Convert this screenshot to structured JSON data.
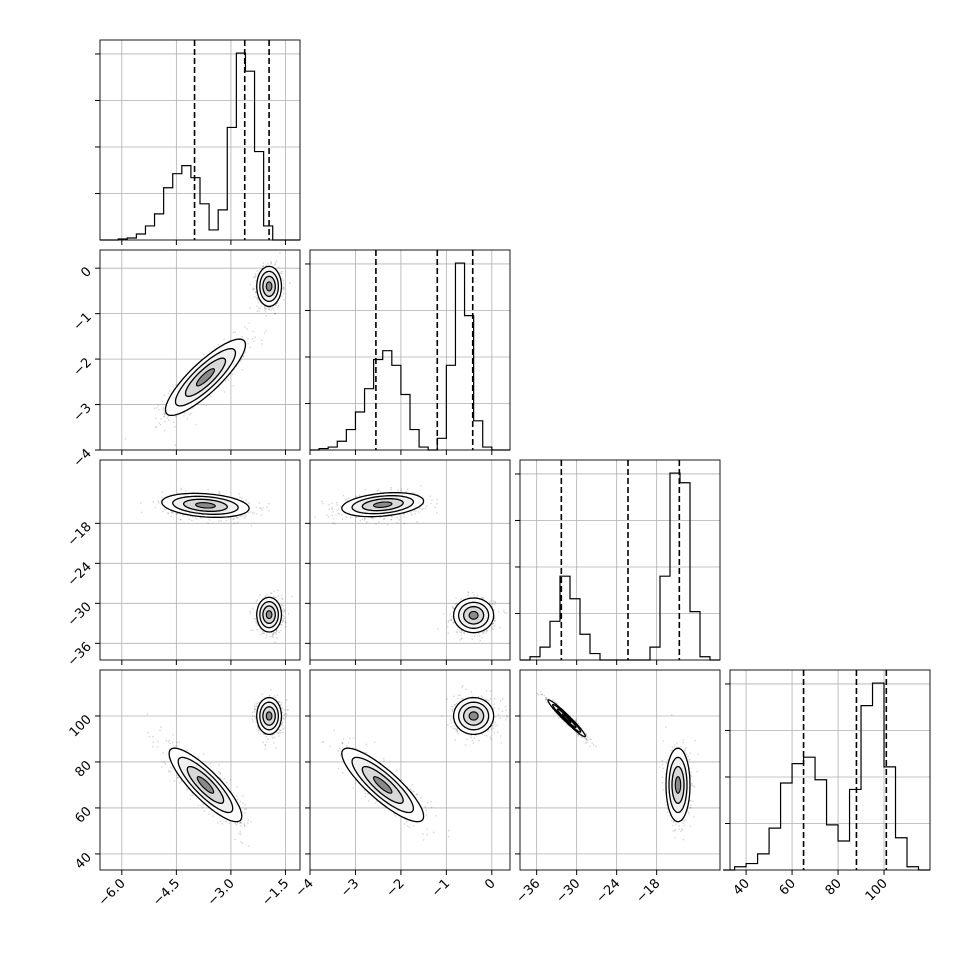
{
  "chart_data": {
    "type": "corner",
    "parameters": 4,
    "panels": {
      "histograms": [
        {
          "param": 0,
          "xlim": [
            -6.6,
            -1.1
          ],
          "bin_edges": [
            -6.6,
            -6.35,
            -6.1,
            -5.85,
            -5.6,
            -5.35,
            -5.1,
            -4.85,
            -4.6,
            -4.35,
            -4.1,
            -3.85,
            -3.6,
            -3.35,
            -3.1,
            -2.85,
            -2.6,
            -2.35,
            -2.1,
            -1.85,
            -1.6,
            -1.35,
            -1.1
          ],
          "counts": [
            0,
            0,
            0.5,
            1,
            3,
            7,
            13,
            26,
            33,
            37,
            31,
            18,
            5,
            15,
            56,
            93,
            84,
            44,
            7,
            0,
            0,
            0
          ],
          "quantile_lines": [
            -4.0,
            -2.62,
            -1.95
          ]
        },
        {
          "param": 1,
          "xlim": [
            -4.0,
            0.4
          ],
          "bin_edges": [
            -4.0,
            -3.8,
            -3.6,
            -3.4,
            -3.2,
            -3.0,
            -2.8,
            -2.6,
            -2.4,
            -2.2,
            -2.0,
            -1.8,
            -1.6,
            -1.4,
            -1.2,
            -1.0,
            -0.8,
            -0.6,
            -0.4,
            -0.2,
            0.0,
            0.2,
            0.4
          ],
          "counts": [
            0,
            0.5,
            1,
            3,
            7,
            13,
            21,
            31,
            34,
            29,
            19,
            7,
            1,
            0,
            4,
            29,
            64,
            46,
            10,
            1,
            0,
            0
          ],
          "quantile_lines": [
            -2.55,
            -1.2,
            -0.42
          ]
        },
        {
          "param": 2,
          "xlim": [
            -38.5,
            -8.5
          ],
          "bin_edges": [
            -38.5,
            -37,
            -35.5,
            -34,
            -32.5,
            -31,
            -29.5,
            -28,
            -26.5,
            -25,
            -23.5,
            -22,
            -20.5,
            -19,
            -17.5,
            -16,
            -14.5,
            -13,
            -11.5,
            -10,
            -8.5
          ],
          "counts": [
            0,
            1,
            4,
            12,
            26,
            19,
            8,
            2,
            0,
            0,
            0,
            0,
            0,
            4,
            26,
            58,
            55,
            15,
            1,
            0
          ],
          "quantile_lines": [
            -32.3,
            -22.3,
            -14.6
          ]
        },
        {
          "param": 3,
          "xlim": [
            30,
            120
          ],
          "bin_edges": [
            30,
            35,
            40,
            45,
            50,
            55,
            60,
            65,
            70,
            75,
            80,
            85,
            90,
            95,
            100,
            105,
            110,
            115,
            120
          ],
          "counts": [
            0,
            1,
            2,
            5,
            13,
            27,
            33,
            35,
            28,
            14,
            9,
            25,
            51,
            58,
            32,
            10,
            1,
            0
          ],
          "quantile_lines": [
            65,
            88,
            101
          ]
        }
      ],
      "clusters_2d": [
        {
          "px": 0,
          "py": 1,
          "modes": [
            {
              "mean": [
                -3.7,
                -2.4
              ],
              "sx": 0.55,
              "sy": 0.42,
              "rho": 0.85,
              "w": 0.5
            },
            {
              "mean": [
                -1.95,
                -0.4
              ],
              "sx": 0.17,
              "sy": 0.22,
              "rho": 0.0,
              "w": 0.5
            }
          ]
        },
        {
          "px": 0,
          "py": 2,
          "modes": [
            {
              "mean": [
                -3.7,
                -15.3
              ],
              "sx": 0.6,
              "sy": 0.9,
              "rho": -0.25,
              "w": 0.5
            },
            {
              "mean": [
                -1.95,
                -31.7
              ],
              "sx": 0.17,
              "sy": 1.3,
              "rho": 0.0,
              "w": 0.5
            }
          ]
        },
        {
          "px": 1,
          "py": 2,
          "modes": [
            {
              "mean": [
                -2.4,
                -15.2
              ],
              "sx": 0.45,
              "sy": 0.9,
              "rho": 0.3,
              "w": 0.5
            },
            {
              "mean": [
                -0.4,
                -31.8
              ],
              "sx": 0.22,
              "sy": 1.3,
              "rho": 0.0,
              "w": 0.5
            }
          ]
        },
        {
          "px": 0,
          "py": 3,
          "modes": [
            {
              "mean": [
                -3.7,
                70
              ],
              "sx": 0.5,
              "sy": 8,
              "rho": -0.85,
              "w": 0.5
            },
            {
              "mean": [
                -1.95,
                100
              ],
              "sx": 0.17,
              "sy": 4,
              "rho": 0.0,
              "w": 0.5
            }
          ]
        },
        {
          "px": 1,
          "py": 3,
          "modes": [
            {
              "mean": [
                -2.4,
                70
              ],
              "sx": 0.45,
              "sy": 8,
              "rho": -0.85,
              "w": 0.5
            },
            {
              "mean": [
                -0.4,
                100
              ],
              "sx": 0.22,
              "sy": 4,
              "rho": 0.0,
              "w": 0.5
            }
          ]
        },
        {
          "px": 2,
          "py": 3,
          "modes": [
            {
              "mean": [
                -31.5,
                99
              ],
              "sx": 1.4,
              "sy": 4,
              "rho": -0.97,
              "w": 0.5
            },
            {
              "mean": [
                -14.8,
                70
              ],
              "sx": 0.9,
              "sy": 8,
              "rho": 0.0,
              "w": 0.5
            }
          ]
        }
      ]
    },
    "axes": [
      {
        "param": 0,
        "range": [
          -6.6,
          -1.1
        ],
        "ticks": [
          -6.0,
          -4.5,
          -3.0,
          -1.5
        ],
        "tick_labels": [
          "−6.0",
          "−4.5",
          "−3.0",
          "−1.5"
        ]
      },
      {
        "param": 1,
        "range": [
          -4.0,
          0.4
        ],
        "ticks": [
          -4,
          -3,
          -2,
          -1,
          0
        ],
        "tick_labels": [
          "−4",
          "−3",
          "−2",
          "−1",
          "0"
        ]
      },
      {
        "param": 2,
        "range": [
          -38.5,
          -8.5
        ],
        "ticks": [
          -36,
          -30,
          -24,
          -18
        ],
        "tick_labels": [
          "−36",
          "−30",
          "−24",
          "−18"
        ]
      },
      {
        "param": 3,
        "range": [
          33,
          120
        ],
        "ticks": [
          40,
          60,
          80,
          100
        ],
        "tick_labels": [
          "40",
          "60",
          "80",
          "100"
        ]
      }
    ],
    "grid": true,
    "title": "",
    "xlabel": "",
    "ylabel": ""
  },
  "colors": {
    "axes": "#000000",
    "grid": "#b0b0b0",
    "points": "#000000",
    "background": "#ffffff"
  }
}
